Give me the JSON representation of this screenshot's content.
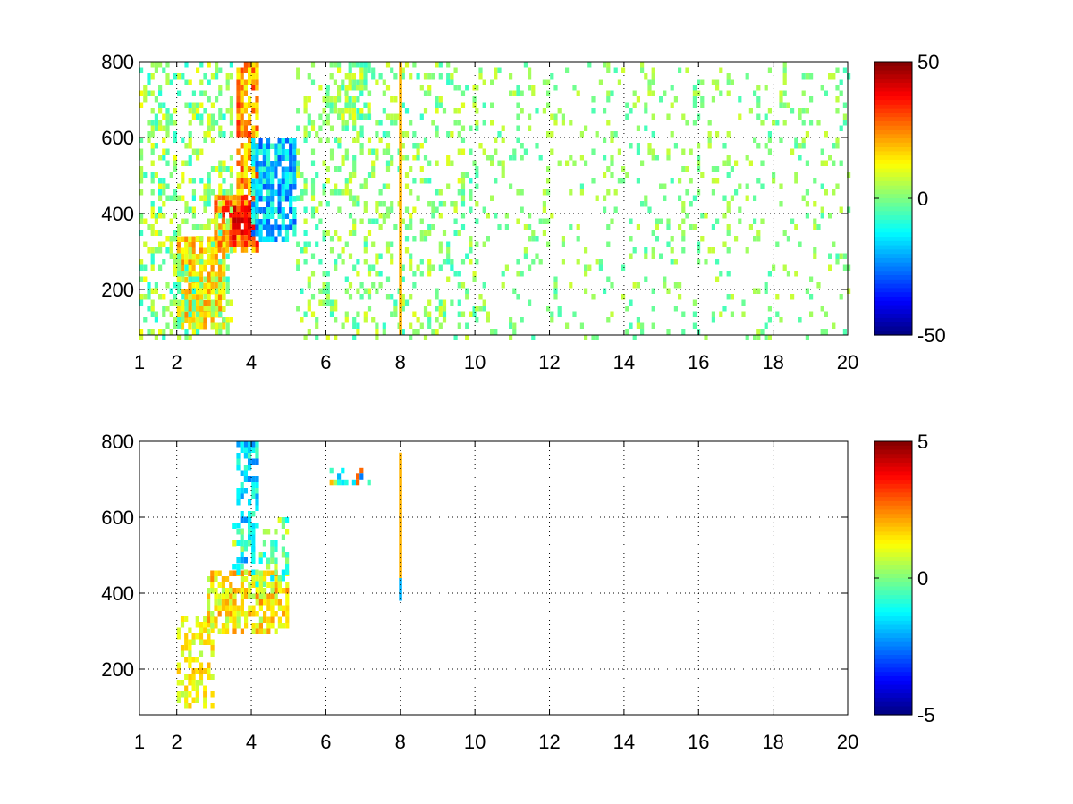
{
  "figure": {
    "background": "#ffffff",
    "colormap": "jet"
  },
  "chart_data": [
    {
      "type": "heatmap",
      "title": "",
      "xlabel": "",
      "ylabel": "",
      "xlim": [
        1,
        20
      ],
      "ylim": [
        80,
        800
      ],
      "xticks": [
        1,
        2,
        4,
        6,
        8,
        10,
        12,
        14,
        16,
        18,
        20
      ],
      "xtick_labels": [
        "1",
        "2",
        "4",
        "6",
        "8",
        "10",
        "12",
        "14",
        "16",
        "18",
        "20"
      ],
      "yticks": [
        200,
        400,
        600,
        800
      ],
      "ytick_labels": [
        "200",
        "400",
        "600",
        "800"
      ],
      "grid": true,
      "colorbar": {
        "min": -50,
        "max": 50,
        "ticks": [
          -50,
          0,
          50
        ],
        "tick_labels": [
          "-50",
          "0",
          "50"
        ]
      },
      "regions": [
        {
          "desc": "warm ridge low",
          "x": [
            2.0,
            3.3
          ],
          "y": [
            100,
            340
          ],
          "value_range": [
            10,
            25
          ],
          "density": 0.8
        },
        {
          "desc": "warm ridge mid",
          "x": [
            3.0,
            4.2
          ],
          "y": [
            300,
            450
          ],
          "value_range": [
            15,
            38
          ],
          "density": 0.85
        },
        {
          "desc": "hot core",
          "x": [
            3.5,
            4.1
          ],
          "y": [
            340,
            420
          ],
          "value_range": [
            30,
            45
          ],
          "density": 0.9
        },
        {
          "desc": "warm column",
          "x": [
            3.6,
            4.2
          ],
          "y": [
            450,
            800
          ],
          "value_range": [
            10,
            35
          ],
          "density": 0.75
        },
        {
          "desc": "cool lobe",
          "x": [
            4.0,
            5.2
          ],
          "y": [
            330,
            600
          ],
          "value_range": [
            -30,
            -5
          ],
          "density": 0.8
        },
        {
          "desc": "left stripes",
          "x": [
            1.0,
            3.5
          ],
          "y": [
            80,
            800
          ],
          "value_range": [
            -10,
            12
          ],
          "density": 0.35
        },
        {
          "desc": "mid scatter",
          "x": [
            5.2,
            10.0
          ],
          "y": [
            80,
            800
          ],
          "value_range": [
            -8,
            10
          ],
          "density": 0.22
        },
        {
          "desc": "cluster 6-7",
          "x": [
            6.0,
            7.2
          ],
          "y": [
            650,
            800
          ],
          "value_range": [
            -8,
            12
          ],
          "density": 0.6
        },
        {
          "desc": "far scatter",
          "x": [
            10.0,
            20.0
          ],
          "y": [
            80,
            800
          ],
          "value_range": [
            -6,
            8
          ],
          "density": 0.13
        }
      ],
      "lines": [
        {
          "x": 8.0,
          "y": [
            80,
            800
          ],
          "value": 20
        }
      ]
    },
    {
      "type": "heatmap",
      "title": "",
      "xlabel": "",
      "ylabel": "",
      "xlim": [
        1,
        20
      ],
      "ylim": [
        80,
        800
      ],
      "xticks": [
        1,
        2,
        4,
        6,
        8,
        10,
        12,
        14,
        16,
        18,
        20
      ],
      "xtick_labels": [
        "1",
        "2",
        "4",
        "6",
        "8",
        "10",
        "12",
        "14",
        "16",
        "18",
        "20"
      ],
      "yticks": [
        200,
        400,
        600,
        800
      ],
      "ytick_labels": [
        "200",
        "400",
        "600",
        "800"
      ],
      "grid": true,
      "colorbar": {
        "min": -5,
        "max": 5,
        "ticks": [
          -5,
          0,
          5
        ],
        "tick_labels": [
          "-5",
          "0",
          "5"
        ]
      },
      "regions": [
        {
          "desc": "warm ridge low",
          "x": [
            2.0,
            3.0
          ],
          "y": [
            100,
            340
          ],
          "value_range": [
            0.5,
            2.0
          ],
          "density": 0.55
        },
        {
          "desc": "warm body",
          "x": [
            2.8,
            5.0
          ],
          "y": [
            300,
            460
          ],
          "value_range": [
            0.3,
            2.5
          ],
          "density": 0.7
        },
        {
          "desc": "cool column",
          "x": [
            3.6,
            4.2
          ],
          "y": [
            480,
            800
          ],
          "value_range": [
            -2.5,
            -0.5
          ],
          "density": 0.5
        },
        {
          "desc": "mixed column",
          "x": [
            3.5,
            5.0
          ],
          "y": [
            420,
            600
          ],
          "value_range": [
            -1.5,
            1.0
          ],
          "density": 0.35
        },
        {
          "desc": "cluster 6-7",
          "x": [
            6.1,
            7.2
          ],
          "y": [
            690,
            730
          ],
          "value_range": [
            -3,
            3
          ],
          "density": 0.5
        }
      ],
      "lines": [
        {
          "x": 8.0,
          "y": [
            440,
            770
          ],
          "value": 2.0
        },
        {
          "x": 8.0,
          "y": [
            380,
            440
          ],
          "value": -2.0
        }
      ]
    }
  ]
}
